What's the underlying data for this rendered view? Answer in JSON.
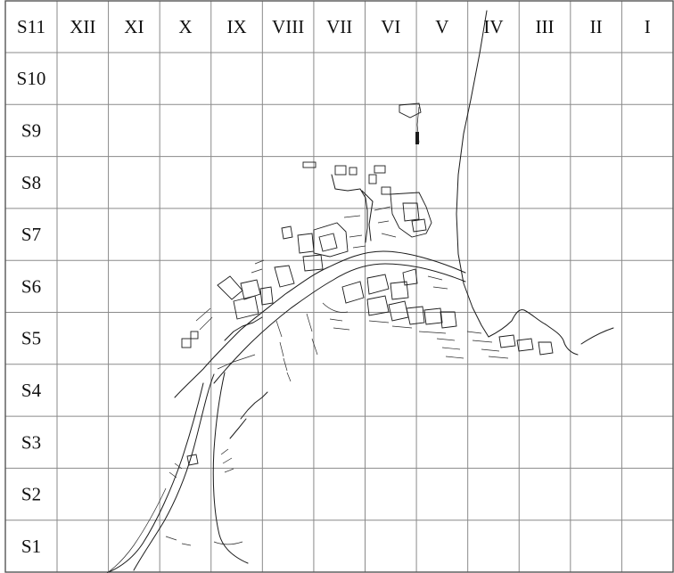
{
  "grid": {
    "corner_label": "S11",
    "columns": [
      "XII",
      "XI",
      "X",
      "IX",
      "VIII",
      "VII",
      "VI",
      "V",
      "IV",
      "III",
      "II",
      "I"
    ],
    "rows": [
      "S10",
      "S9",
      "S8",
      "S7",
      "S6",
      "S5",
      "S4",
      "S3",
      "S2",
      "S1"
    ]
  },
  "colors": {
    "grid": "#8a8a8a",
    "frame": "#555555",
    "text": "#111111",
    "ink": "#1b1b1b",
    "background": "#ffffff"
  }
}
